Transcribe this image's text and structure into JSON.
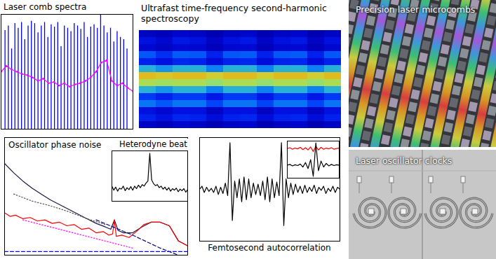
{
  "chart_data": [
    {
      "type": "comb",
      "title": "Laser comb spectra",
      "xlim": [
        0,
        1
      ],
      "ylim": [
        0,
        1
      ],
      "tick_labels": false,
      "series": [
        {
          "type": "rule",
          "color": "#0000ff",
          "x": [
            0.03,
            0.055,
            0.08,
            0.105,
            0.13,
            0.155,
            0.18,
            0.205,
            0.23,
            0.255,
            0.28,
            0.305,
            0.33,
            0.355,
            0.38,
            0.405,
            0.43,
            0.455,
            0.48,
            0.505,
            0.53,
            0.555,
            0.58,
            0.605,
            0.63,
            0.655,
            0.68,
            0.705,
            0.73,
            0.755,
            0.78,
            0.805,
            0.83,
            0.855,
            0.88,
            0.905,
            0.93,
            0.955
          ],
          "values": [
            0.86,
            0.9,
            0.7,
            0.92,
            0.88,
            0.93,
            0.78,
            0.9,
            0.94,
            0.92,
            0.84,
            0.9,
            0.93,
            0.8,
            0.91,
            0.89,
            0.93,
            0.72,
            0.9,
            0.88,
            0.85,
            0.92,
            0.9,
            0.87,
            0.93,
            0.8,
            0.89,
            0.91,
            0.88,
            1.0,
            0.9,
            0.84,
            0.88,
            0.76,
            0.85,
            0.8,
            0.78,
            0.7
          ]
        },
        {
          "type": "line",
          "color": "#ff00ff",
          "marker": "dot",
          "x": [
            0,
            0.04,
            0.08,
            0.12,
            0.16,
            0.2,
            0.24,
            0.28,
            0.32,
            0.36,
            0.4,
            0.44,
            0.48,
            0.52,
            0.56,
            0.6,
            0.64,
            0.68,
            0.72,
            0.76,
            0.8,
            0.84,
            0.88,
            0.92,
            0.96,
            1.0
          ],
          "values": [
            0.5,
            0.55,
            0.52,
            0.5,
            0.48,
            0.47,
            0.45,
            0.42,
            0.44,
            0.4,
            0.41,
            0.38,
            0.4,
            0.37,
            0.39,
            0.4,
            0.42,
            0.45,
            0.5,
            0.58,
            0.6,
            0.42,
            0.38,
            0.4,
            0.36,
            0.33
          ]
        }
      ]
    },
    {
      "type": "heatmap",
      "title": "Ultrafast time-frequency second-harmonic spectroscopy",
      "zlim": [
        0,
        1
      ],
      "tick_labels": false,
      "cells": [
        [
          0.12,
          0.1,
          0.14,
          0.12,
          0.08,
          0.12,
          0.14,
          0.08,
          0.12,
          0.14,
          0.08,
          0.12
        ],
        [
          0.2,
          0.15,
          0.22,
          0.2,
          0.12,
          0.2,
          0.22,
          0.12,
          0.2,
          0.22,
          0.12,
          0.2
        ],
        [
          0.15,
          0.12,
          0.16,
          0.15,
          0.1,
          0.15,
          0.16,
          0.1,
          0.15,
          0.16,
          0.1,
          0.15
        ],
        [
          0.35,
          0.28,
          0.36,
          0.35,
          0.25,
          0.35,
          0.36,
          0.25,
          0.35,
          0.36,
          0.25,
          0.35
        ],
        [
          0.25,
          0.2,
          0.26,
          0.25,
          0.18,
          0.25,
          0.26,
          0.18,
          0.25,
          0.26,
          0.18,
          0.25
        ],
        [
          0.5,
          0.45,
          0.5,
          0.5,
          0.42,
          0.5,
          0.5,
          0.42,
          0.5,
          0.5,
          0.42,
          0.5
        ],
        [
          0.8,
          0.78,
          0.8,
          0.8,
          0.76,
          0.8,
          0.8,
          0.76,
          0.8,
          0.8,
          0.76,
          0.8
        ],
        [
          0.7,
          0.68,
          0.7,
          0.7,
          0.66,
          0.7,
          0.7,
          0.66,
          0.7,
          0.7,
          0.66,
          0.7
        ],
        [
          0.5,
          0.45,
          0.5,
          0.5,
          0.42,
          0.5,
          0.5,
          0.42,
          0.5,
          0.5,
          0.42,
          0.5
        ],
        [
          0.3,
          0.25,
          0.3,
          0.3,
          0.22,
          0.3,
          0.3,
          0.22,
          0.3,
          0.3,
          0.22,
          0.3
        ],
        [
          0.4,
          0.35,
          0.4,
          0.4,
          0.32,
          0.4,
          0.4,
          0.32,
          0.4,
          0.4,
          0.32,
          0.4
        ],
        [
          0.2,
          0.15,
          0.2,
          0.2,
          0.12,
          0.2,
          0.2,
          0.12,
          0.2,
          0.2,
          0.12,
          0.2
        ],
        [
          0.25,
          0.2,
          0.26,
          0.25,
          0.18,
          0.25,
          0.26,
          0.18,
          0.25,
          0.26,
          0.18,
          0.25
        ],
        [
          0.12,
          0.1,
          0.14,
          0.12,
          0.08,
          0.12,
          0.14,
          0.08,
          0.12,
          0.14,
          0.08,
          0.12
        ]
      ]
    },
    {
      "type": "line",
      "title": "Oscillator phase noise",
      "xlim": [
        0,
        1
      ],
      "ylim": [
        0,
        1
      ],
      "tick_labels": false,
      "series": [
        {
          "color": "#1a1a40",
          "line_style": "solid",
          "x": [
            0,
            0.05,
            0.1,
            0.15,
            0.2,
            0.25,
            0.3,
            0.35,
            0.4,
            0.45,
            0.5,
            0.55,
            0.58,
            0.6,
            0.62,
            0.65,
            0.7,
            0.75,
            0.8,
            0.85,
            0.9,
            0.95,
            1.0
          ],
          "values": [
            0.78,
            0.7,
            0.63,
            0.57,
            0.52,
            0.47,
            0.43,
            0.39,
            0.35,
            0.31,
            0.27,
            0.24,
            0.22,
            0.3,
            0.21,
            0.19,
            0.19,
            0.24,
            0.28,
            0.28,
            0.25,
            0.12,
            0.08
          ]
        },
        {
          "color": "#ff0000",
          "line_style": "solid",
          "x": [
            0,
            0.03,
            0.06,
            0.1,
            0.14,
            0.18,
            0.22,
            0.26,
            0.3,
            0.34,
            0.38,
            0.42,
            0.46,
            0.5,
            0.54,
            0.57,
            0.59,
            0.6,
            0.61,
            0.64,
            0.68,
            0.72,
            0.76,
            0.8,
            0.85,
            0.9,
            0.95,
            1.0
          ],
          "values": [
            0.36,
            0.33,
            0.34,
            0.31,
            0.32,
            0.29,
            0.3,
            0.27,
            0.28,
            0.25,
            0.26,
            0.22,
            0.23,
            0.19,
            0.2,
            0.17,
            0.18,
            0.3,
            0.16,
            0.17,
            0.15,
            0.2,
            0.26,
            0.28,
            0.28,
            0.25,
            0.12,
            0.08
          ]
        },
        {
          "color": "#555555",
          "line_style": "dotted",
          "x": [
            0.05,
            0.15,
            0.25,
            0.35,
            0.45,
            0.55
          ],
          "values": [
            0.52,
            0.46,
            0.42,
            0.37,
            0.31,
            0.26
          ]
        },
        {
          "color": "#ff00ff",
          "line_style": "dotted",
          "x": [
            0.1,
            0.3,
            0.5,
            0.6,
            0.7
          ],
          "values": [
            0.3,
            0.22,
            0.14,
            0.1,
            0.06
          ]
        },
        {
          "color": "#000080",
          "line_style": "dashed",
          "x": [
            0.5,
            0.7,
            0.85,
            0.95
          ],
          "values": [
            0.3,
            0.17,
            0.06,
            0
          ]
        },
        {
          "color": "#0000ff",
          "line_style": "dashed",
          "x": [
            0,
            1
          ],
          "values": [
            0.03,
            0.03
          ]
        }
      ],
      "inset": {
        "type": "line",
        "title": "Heterodyne beat",
        "xlim": [
          0,
          40
        ],
        "ylim": [
          0,
          1
        ],
        "tick_labels": false,
        "series": [
          {
            "color": "#000000",
            "line_style": "solid",
            "x": [
              0,
              1,
              2,
              3,
              4,
              5,
              6,
              7,
              8,
              9,
              10,
              11,
              12,
              13,
              14,
              15,
              16,
              17,
              18,
              19,
              20,
              21,
              22,
              23,
              24,
              25,
              26,
              27,
              28,
              29,
              30,
              31,
              32,
              33,
              34,
              35,
              36,
              37,
              38,
              39,
              40
            ],
            "values": [
              0.3,
              0.22,
              0.28,
              0.2,
              0.26,
              0.24,
              0.3,
              0.21,
              0.27,
              0.23,
              0.29,
              0.22,
              0.3,
              0.25,
              0.32,
              0.27,
              0.33,
              0.3,
              0.36,
              0.4,
              0.95,
              0.42,
              0.35,
              0.31,
              0.33,
              0.27,
              0.3,
              0.24,
              0.28,
              0.22,
              0.27,
              0.2,
              0.25,
              0.22,
              0.26,
              0.19,
              0.24,
              0.21,
              0.25,
              0.18,
              0.23
            ]
          }
        ]
      }
    },
    {
      "type": "line",
      "title": "Femtosecond autocorrelation",
      "xlim": [
        0,
        60
      ],
      "ylim": [
        0,
        1
      ],
      "tick_labels": false,
      "series": [
        {
          "color": "#000000",
          "line_style": "solid",
          "x": [
            0,
            1,
            2,
            3,
            4,
            5,
            6,
            7,
            8,
            9,
            10,
            11,
            12,
            13,
            14,
            15,
            16,
            17,
            18,
            19,
            20,
            21,
            22,
            23,
            24,
            25,
            26,
            27,
            28,
            29,
            30,
            31,
            32,
            33,
            34,
            35,
            36,
            37,
            38,
            39,
            40,
            41,
            42,
            43,
            44,
            45,
            46,
            47,
            48,
            49,
            50,
            51,
            52,
            53,
            54,
            55,
            56,
            57,
            58,
            59,
            60
          ],
          "values": [
            0.5,
            0.53,
            0.47,
            0.52,
            0.48,
            0.51,
            0.47,
            0.53,
            0.45,
            0.52,
            0.46,
            0.56,
            0.44,
            0.95,
            0.2,
            0.58,
            0.42,
            0.6,
            0.38,
            0.62,
            0.4,
            0.6,
            0.42,
            0.56,
            0.45,
            0.55,
            0.44,
            0.58,
            0.4,
            0.62,
            0.38,
            0.6,
            0.42,
            0.57,
            0.44,
            0.95,
            0.15,
            0.6,
            0.42,
            0.56,
            0.45,
            0.55,
            0.47,
            0.53,
            0.46,
            0.54,
            0.47,
            0.52,
            0.48,
            0.54,
            0.46,
            0.52,
            0.49,
            0.53,
            0.46,
            0.51,
            0.48,
            0.53,
            0.47,
            0.52,
            0.5
          ]
        }
      ],
      "inset": {
        "type": "line",
        "xlim": [
          0,
          20
        ],
        "ylim": [
          0,
          1
        ],
        "tick_labels": false,
        "series": [
          {
            "color": "#ff0000",
            "line_style": "solid",
            "x": [
              0,
              1,
              2,
              3,
              4,
              5,
              6,
              7,
              8,
              9,
              10,
              11,
              12,
              13,
              14,
              15,
              16,
              17,
              18,
              19,
              20
            ],
            "values": [
              0.8,
              0.82,
              0.78,
              0.81,
              0.79,
              0.83,
              0.77,
              0.82,
              0.76,
              0.84,
              0.72,
              0.86,
              0.76,
              0.83,
              0.78,
              0.81,
              0.79,
              0.82,
              0.78,
              0.8,
              0.81
            ]
          },
          {
            "color": "#000000",
            "line_style": "solid",
            "x": [
              0,
              1,
              2,
              3,
              4,
              5,
              6,
              7,
              8,
              9,
              10,
              11,
              12,
              13,
              14,
              15,
              16,
              17,
              18,
              19,
              20
            ],
            "values": [
              0.35,
              0.37,
              0.33,
              0.36,
              0.34,
              0.38,
              0.3,
              0.42,
              0.26,
              0.5,
              0.05,
              0.95,
              0.2,
              0.46,
              0.3,
              0.4,
              0.33,
              0.37,
              0.34,
              0.36,
              0.35
            ]
          }
        ]
      }
    }
  ],
  "photos": [
    {
      "label": "Precision laser microcombs"
    },
    {
      "label": "Laser oscillator clocks"
    }
  ]
}
